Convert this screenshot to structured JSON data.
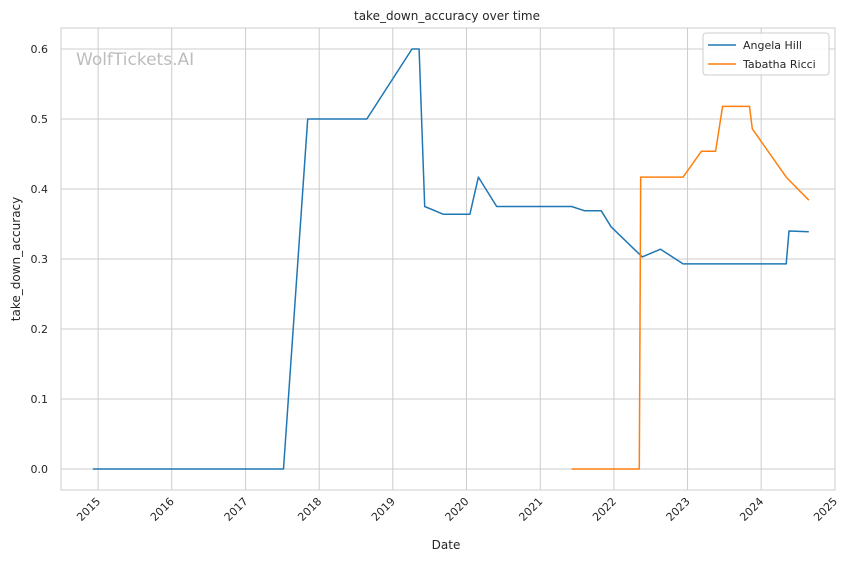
{
  "chart_data": {
    "type": "line",
    "title": "take_down_accuracy over time",
    "xlabel": "Date",
    "ylabel": "take_down_accuracy",
    "watermark": "WolfTickets.AI",
    "xlim": [
      "2014-07-01",
      "2025-01-01"
    ],
    "ylim": [
      -0.03,
      0.63
    ],
    "x_ticks": [
      "2015",
      "2016",
      "2017",
      "2018",
      "2019",
      "2020",
      "2021",
      "2022",
      "2023",
      "2024",
      "2025"
    ],
    "y_ticks": [
      "0.0",
      "0.1",
      "0.2",
      "0.3",
      "0.4",
      "0.5",
      "0.6"
    ],
    "grid": true,
    "legend_position": "top-right",
    "series": [
      {
        "name": "Angela Hill",
        "color": "#1f77b4",
        "points": [
          [
            "2014-12-06",
            0.0
          ],
          [
            "2017-07-08",
            0.0
          ],
          [
            "2017-11-05",
            0.5
          ],
          [
            "2018-08-25",
            0.5
          ],
          [
            "2019-04-06",
            0.6
          ],
          [
            "2019-05-11",
            0.6
          ],
          [
            "2019-06-08",
            0.375
          ],
          [
            "2019-09-07",
            0.364
          ],
          [
            "2020-01-18",
            0.364
          ],
          [
            "2020-02-29",
            0.417
          ],
          [
            "2020-05-30",
            0.375
          ],
          [
            "2021-06-05",
            0.375
          ],
          [
            "2021-08-07",
            0.369
          ],
          [
            "2021-10-30",
            0.369
          ],
          [
            "2021-12-18",
            0.346
          ],
          [
            "2022-05-21",
            0.303
          ],
          [
            "2022-08-20",
            0.314
          ],
          [
            "2022-12-10",
            0.293
          ],
          [
            "2024-05-04",
            0.293
          ],
          [
            "2024-05-18",
            0.34
          ],
          [
            "2024-08-24",
            0.339
          ]
        ]
      },
      {
        "name": "Tabatha Ricci",
        "color": "#ff7f0e",
        "points": [
          [
            "2021-06-05",
            0.0
          ],
          [
            "2022-05-07",
            0.0
          ],
          [
            "2022-05-14",
            0.417
          ],
          [
            "2022-12-10",
            0.417
          ],
          [
            "2023-03-11",
            0.454
          ],
          [
            "2023-05-20",
            0.454
          ],
          [
            "2023-06-24",
            0.518
          ],
          [
            "2023-11-04",
            0.518
          ],
          [
            "2023-11-18",
            0.486
          ],
          [
            "2024-05-04",
            0.417
          ],
          [
            "2024-08-24",
            0.384
          ]
        ]
      }
    ]
  }
}
